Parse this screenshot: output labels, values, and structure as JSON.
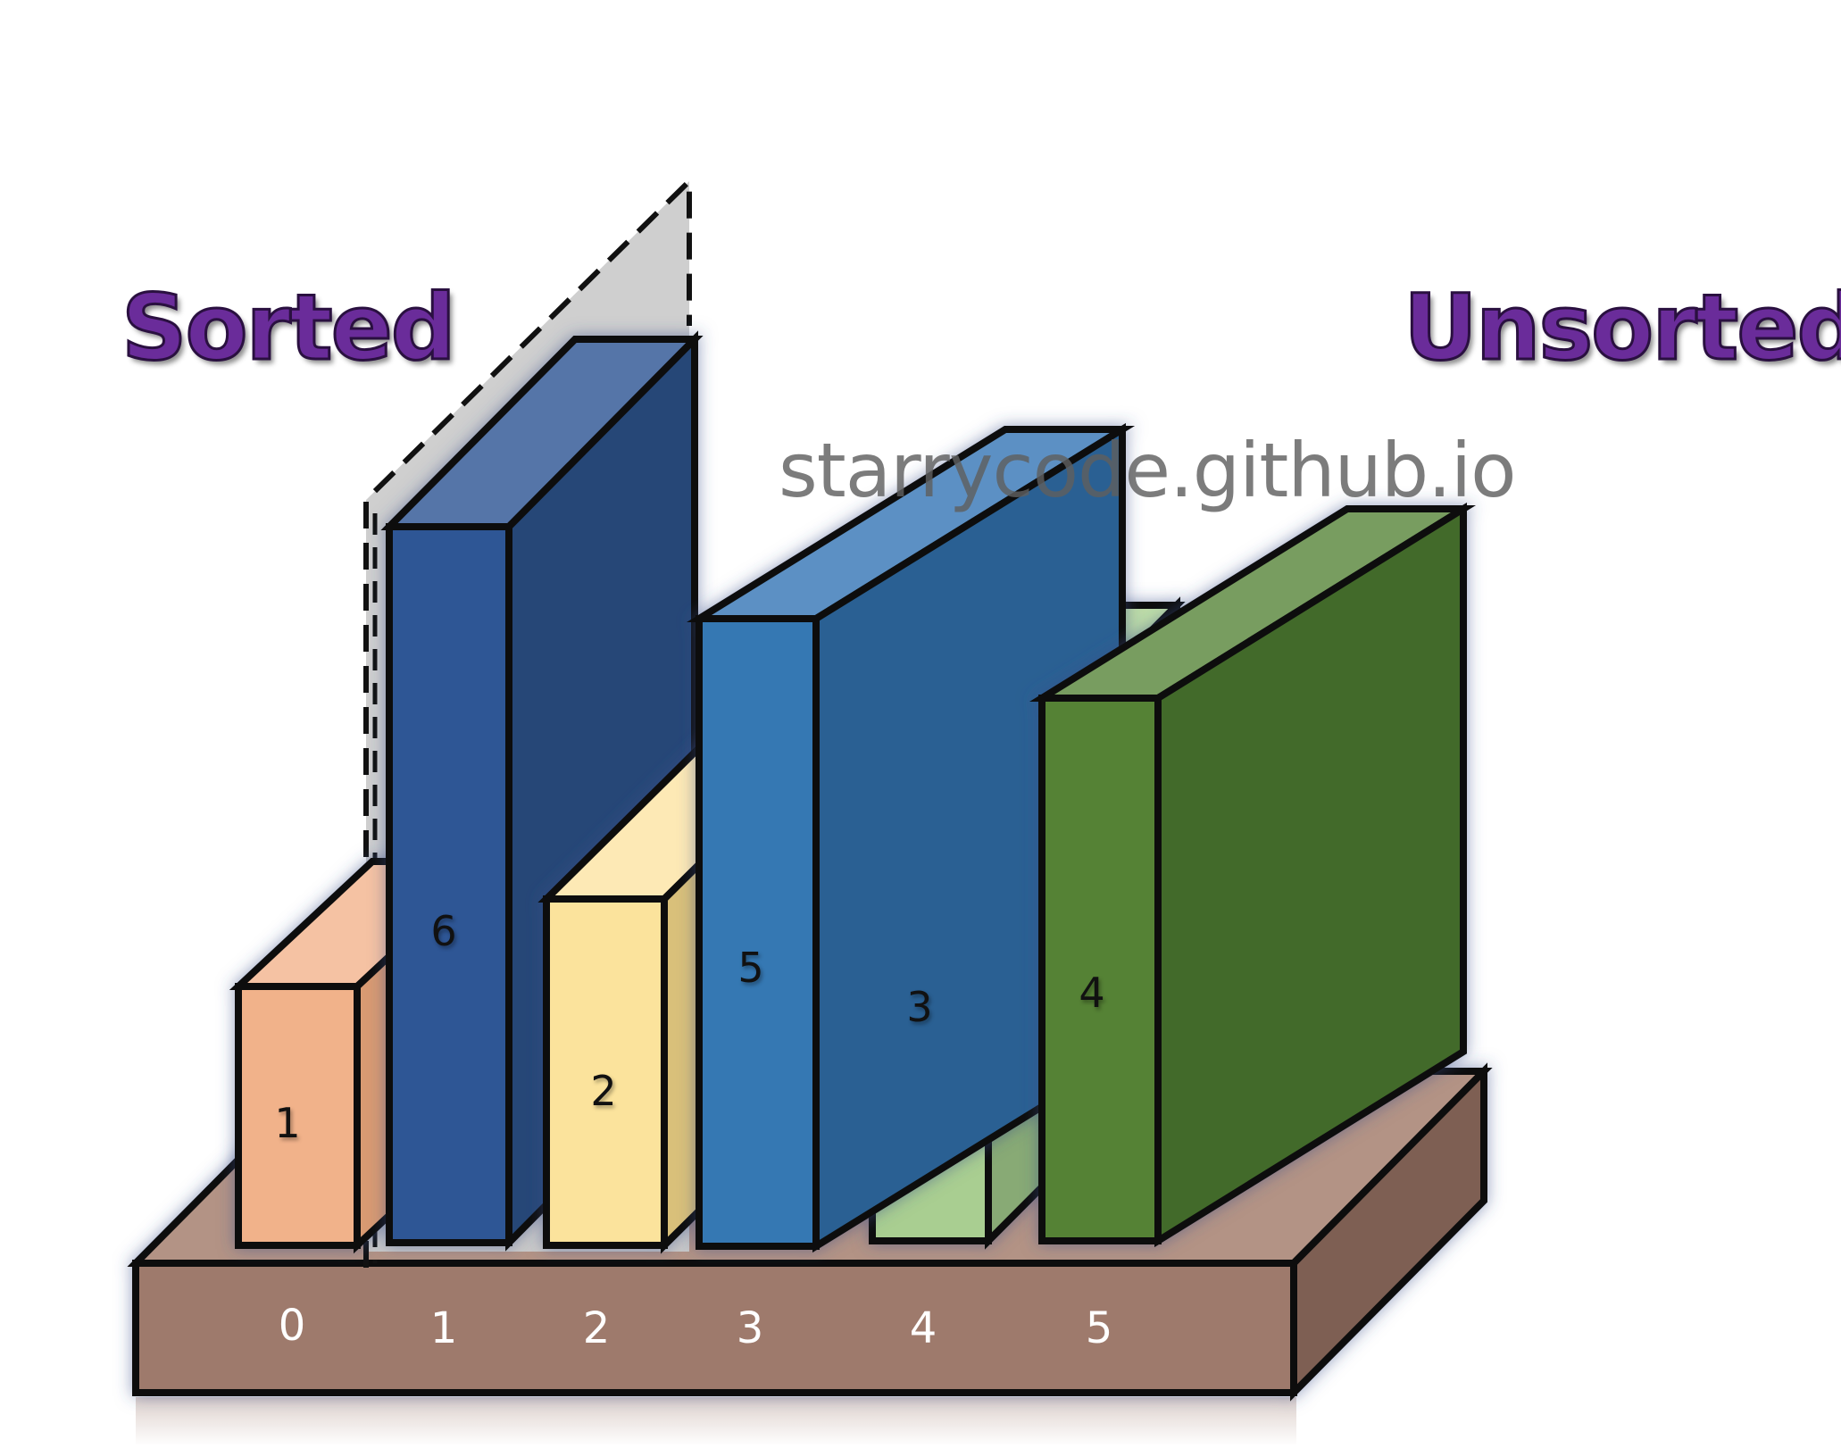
{
  "headings": {
    "left": "Sorted",
    "right": "Unsorted"
  },
  "watermark": "starrycode.github.io",
  "colors": {
    "heading": "#6a2c9a",
    "base_top": "#b39385",
    "base_front": "#9e7a6c",
    "base_side": "#7e5f53",
    "ghost": "#cccccc"
  },
  "base": {
    "indices": [
      "0",
      "1",
      "2",
      "3",
      "4",
      "5"
    ]
  },
  "bars": [
    {
      "value": "1",
      "index": "0",
      "front": "#f1b28a",
      "top": "#f5c2a3",
      "side": "#d89a72"
    },
    {
      "value": "6",
      "index": "1",
      "front": "#2f5795",
      "top": "#5574a8",
      "side": "#264677"
    },
    {
      "value": "2",
      "index": "2",
      "front": "#fbe39c",
      "top": "#fde9b5",
      "side": "#d9c07a"
    },
    {
      "value": "5",
      "index": "3",
      "front": "#3478b3",
      "top": "#5b90c4",
      "side": "#2a6193"
    },
    {
      "value": "3",
      "index": "4",
      "front": "#a9ce91",
      "top": "#bddca8",
      "side": "#88aa74"
    },
    {
      "value": "4",
      "index": "5",
      "front": "#548235",
      "top": "#789d61",
      "side": "#436a2b"
    }
  ],
  "annotation": {
    "kind": "dashed-ghost-outline",
    "note_target_value": "6"
  }
}
